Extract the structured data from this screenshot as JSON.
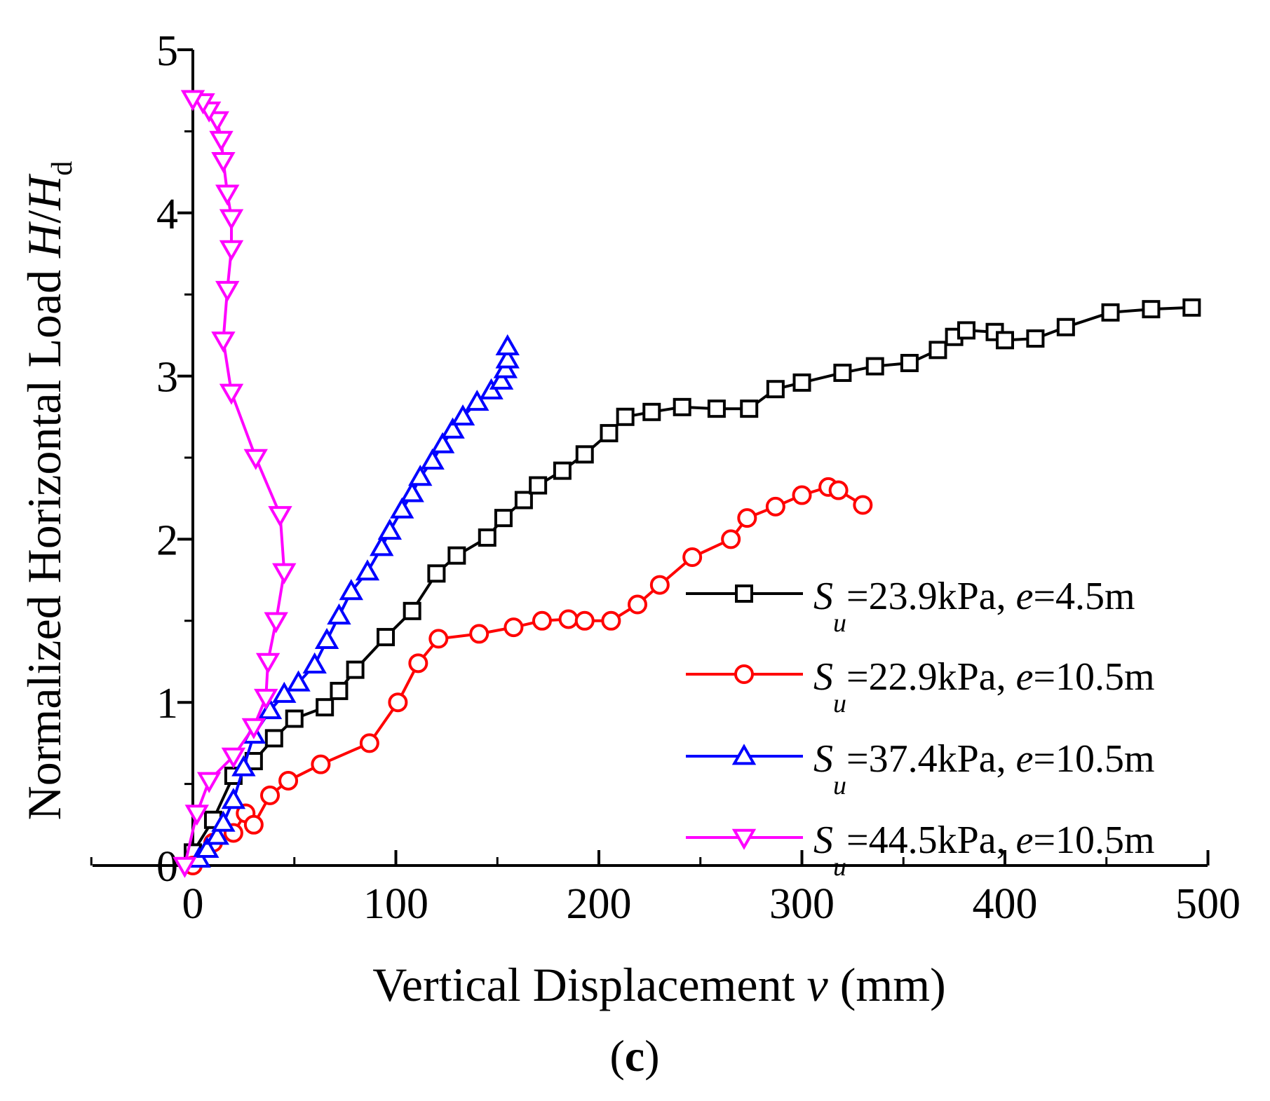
{
  "chart_data": {
    "type": "line",
    "xlabel": "Vertical Displacement  v (mm)",
    "xlabel_parts": {
      "prefix": "Vertical Displacement  ",
      "var": "v",
      "suffix": " (mm)"
    },
    "ylabel": "Normalized Horizontal Load H/Hd",
    "ylabel_parts": {
      "prefix": "Normalized Horizontal Load ",
      "var1": "H",
      "slash": "/",
      "var2": "H",
      "sub": "d"
    },
    "xlim": [
      -50,
      500
    ],
    "ylim": [
      0,
      5
    ],
    "x_ticks": [
      0,
      100,
      200,
      300,
      400,
      500
    ],
    "y_ticks": [
      0,
      1,
      2,
      3,
      4,
      5
    ],
    "grid": false,
    "legend_position": "right",
    "caption": "(c)",
    "caption_parts": {
      "open": "(",
      "letter": "c",
      "close": ")"
    },
    "series": [
      {
        "name": "Su=23.9kPa, e=4.5m",
        "label": {
          "s": "S",
          "sub": "u",
          "mid": "=23.9kPa, ",
          "e": "e",
          "tail": "=4.5m"
        },
        "color": "#000000",
        "marker": "square",
        "points": [
          [
            0,
            0.08
          ],
          [
            10,
            0.28
          ],
          [
            20,
            0.55
          ],
          [
            30,
            0.64
          ],
          [
            40,
            0.78
          ],
          [
            50,
            0.9
          ],
          [
            65,
            0.97
          ],
          [
            72,
            1.07
          ],
          [
            80,
            1.2
          ],
          [
            95,
            1.4
          ],
          [
            108,
            1.56
          ],
          [
            120,
            1.79
          ],
          [
            130,
            1.9
          ],
          [
            145,
            2.01
          ],
          [
            153,
            2.13
          ],
          [
            163,
            2.24
          ],
          [
            170,
            2.33
          ],
          [
            182,
            2.42
          ],
          [
            193,
            2.52
          ],
          [
            205,
            2.65
          ],
          [
            213,
            2.75
          ],
          [
            226,
            2.78
          ],
          [
            241,
            2.81
          ],
          [
            258,
            2.8
          ],
          [
            274,
            2.8
          ],
          [
            287,
            2.92
          ],
          [
            300,
            2.96
          ],
          [
            320,
            3.02
          ],
          [
            336,
            3.06
          ],
          [
            353,
            3.08
          ],
          [
            367,
            3.16
          ],
          [
            375,
            3.24
          ],
          [
            381,
            3.28
          ],
          [
            395,
            3.27
          ],
          [
            400,
            3.22
          ],
          [
            415,
            3.23
          ],
          [
            430,
            3.3
          ],
          [
            452,
            3.39
          ],
          [
            472,
            3.41
          ],
          [
            492,
            3.42
          ]
        ]
      },
      {
        "name": "Su=22.9kPa, e=10.5m",
        "label": {
          "s": "S",
          "sub": "u",
          "mid": "=22.9kPa, ",
          "e": "e",
          "tail": "=10.5m"
        },
        "color": "#ff0000",
        "marker": "circle",
        "points": [
          [
            0,
            0.0
          ],
          [
            10,
            0.14
          ],
          [
            20,
            0.2
          ],
          [
            26,
            0.32
          ],
          [
            30,
            0.25
          ],
          [
            38,
            0.43
          ],
          [
            47,
            0.52
          ],
          [
            63,
            0.62
          ],
          [
            87,
            0.75
          ],
          [
            101,
            1.0
          ],
          [
            111,
            1.24
          ],
          [
            121,
            1.39
          ],
          [
            141,
            1.42
          ],
          [
            158,
            1.46
          ],
          [
            172,
            1.5
          ],
          [
            185,
            1.51
          ],
          [
            193,
            1.5
          ],
          [
            206,
            1.5
          ],
          [
            219,
            1.6
          ],
          [
            230,
            1.72
          ],
          [
            246,
            1.89
          ],
          [
            265,
            2.0
          ],
          [
            273,
            2.13
          ],
          [
            287,
            2.2
          ],
          [
            300,
            2.27
          ],
          [
            313,
            2.32
          ],
          [
            318,
            2.3
          ],
          [
            330,
            2.21
          ]
        ]
      },
      {
        "name": "Su=37.4kPa, e=10.5m",
        "label": {
          "s": "S",
          "sub": "u",
          "mid": "=37.4kPa, ",
          "e": "e",
          "tail": "=10.5m"
        },
        "color": "#0000ff",
        "marker": "triangle-up",
        "points": [
          [
            3,
            0.04
          ],
          [
            7,
            0.1
          ],
          [
            12,
            0.18
          ],
          [
            15,
            0.26
          ],
          [
            20,
            0.4
          ],
          [
            25,
            0.6
          ],
          [
            30,
            0.8
          ],
          [
            38,
            0.95
          ],
          [
            45,
            1.05
          ],
          [
            52,
            1.12
          ],
          [
            60,
            1.23
          ],
          [
            66,
            1.38
          ],
          [
            72,
            1.53
          ],
          [
            78,
            1.68
          ],
          [
            86,
            1.8
          ],
          [
            93,
            1.95
          ],
          [
            97,
            2.05
          ],
          [
            103,
            2.18
          ],
          [
            108,
            2.28
          ],
          [
            112,
            2.38
          ],
          [
            118,
            2.48
          ],
          [
            123,
            2.58
          ],
          [
            128,
            2.67
          ],
          [
            133,
            2.75
          ],
          [
            140,
            2.84
          ],
          [
            147,
            2.91
          ],
          [
            152,
            2.97
          ],
          [
            154,
            3.04
          ],
          [
            155,
            3.1
          ],
          [
            155,
            3.18
          ]
        ]
      },
      {
        "name": "Su=44.5kPa, e=10.5m",
        "label": {
          "s": "S",
          "sub": "u",
          "mid": "=44.5kPa, ",
          "e": "e",
          "tail": "=10.5m"
        },
        "color": "#ff00ff",
        "marker": "triangle-down",
        "points": [
          [
            -4,
            0.0
          ],
          [
            2,
            0.32
          ],
          [
            8,
            0.52
          ],
          [
            20,
            0.67
          ],
          [
            30,
            0.85
          ],
          [
            36,
            1.03
          ],
          [
            37,
            1.25
          ],
          [
            41,
            1.5
          ],
          [
            45,
            1.8
          ],
          [
            43,
            2.15
          ],
          [
            31,
            2.5
          ],
          [
            19,
            2.9
          ],
          [
            15,
            3.22
          ],
          [
            17,
            3.53
          ],
          [
            19,
            3.78
          ],
          [
            19,
            3.97
          ],
          [
            17,
            4.12
          ],
          [
            15,
            4.32
          ],
          [
            14,
            4.45
          ],
          [
            12,
            4.57
          ],
          [
            8,
            4.63
          ],
          [
            5,
            4.68
          ],
          [
            0,
            4.7
          ]
        ]
      }
    ]
  }
}
